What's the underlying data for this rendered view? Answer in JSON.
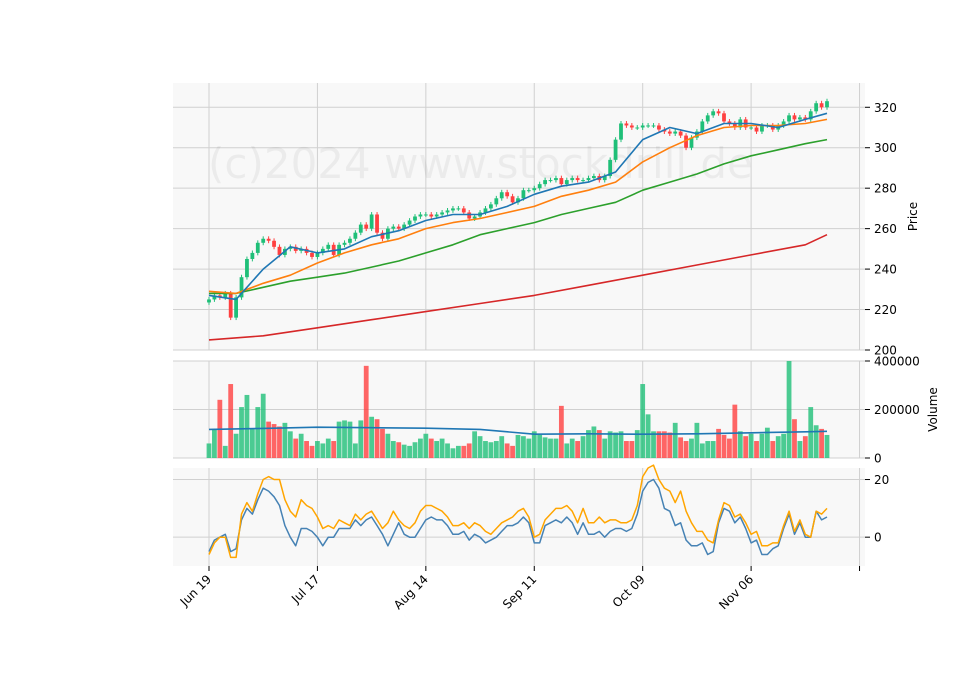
{
  "watermark": "(c)2024 www.stockdrill.de",
  "colors": {
    "up": "#1fbf78",
    "down": "#ff4040",
    "ma_short": "#1f77b4",
    "ma_mid": "#ff7f0e",
    "ma_long": "#2ca02c",
    "ma_200": "#d62728",
    "vol_ma": "#1f77b4",
    "osc_a": "#4682b4",
    "osc_b": "#ffa500",
    "panel_bg": "#f8f8f8",
    "grid": "#d0d0d0"
  },
  "chart_data": {
    "type": "candlestick",
    "x_ticks": [
      "Jun 19",
      "Jul 17",
      "Aug 14",
      "Sep 11",
      "Oct 09",
      "Nov 06"
    ],
    "price_panel": {
      "ylabel": "Price",
      "ylim": [
        200,
        332
      ],
      "y_ticks": [
        "200",
        "220",
        "240",
        "260",
        "280",
        "300",
        "320"
      ],
      "close": [
        225,
        227,
        226,
        228,
        216,
        226,
        236,
        245,
        248,
        253,
        255,
        254,
        251,
        247,
        250,
        251,
        249,
        250,
        248,
        246,
        248,
        250,
        252,
        247,
        252,
        253,
        255,
        258,
        262,
        260,
        267,
        258,
        255,
        260,
        261,
        260,
        262,
        264,
        266,
        267,
        267,
        266,
        267,
        268,
        269,
        270,
        270,
        268,
        265,
        266,
        268,
        270,
        272,
        275,
        278,
        276,
        273,
        275,
        279,
        279,
        280,
        282,
        284,
        284,
        285,
        282,
        284,
        285,
        284,
        284,
        285,
        286,
        284,
        286,
        294,
        304,
        312,
        311,
        310,
        310,
        311,
        311,
        311,
        309,
        308,
        307,
        308,
        306,
        300,
        305,
        308,
        313,
        316,
        318,
        317,
        313,
        312,
        310,
        314,
        310,
        310,
        308,
        311,
        311,
        309,
        311,
        313,
        316,
        314,
        315,
        314,
        318,
        322,
        320,
        323
      ],
      "ma_short": {
        "x_index": [
          0,
          5,
          10,
          15,
          20,
          25,
          30,
          35,
          40,
          45,
          50,
          55,
          60,
          65,
          70,
          75,
          80,
          85,
          90,
          95,
          100,
          105,
          110,
          114
        ],
        "values": [
          227,
          225,
          240,
          251,
          248,
          250,
          256,
          259,
          264,
          267,
          267,
          271,
          277,
          281,
          283,
          288,
          304,
          310,
          307,
          312,
          312,
          310,
          314,
          317
        ]
      },
      "ma_mid": {
        "x_index": [
          0,
          5,
          10,
          15,
          20,
          25,
          30,
          35,
          40,
          45,
          50,
          55,
          60,
          65,
          70,
          75,
          80,
          85,
          90,
          95,
          100,
          105,
          110,
          114
        ],
        "values": [
          229,
          228,
          233,
          237,
          243,
          248,
          252,
          255,
          260,
          263,
          265,
          268,
          271,
          276,
          279,
          283,
          293,
          300,
          306,
          310,
          311,
          311,
          312,
          314
        ]
      },
      "ma_long": {
        "x_index": [
          0,
          5,
          10,
          15,
          20,
          25,
          30,
          35,
          40,
          45,
          50,
          55,
          60,
          65,
          70,
          75,
          80,
          85,
          90,
          95,
          100,
          105,
          110,
          114
        ],
        "values": [
          228,
          228,
          231,
          234,
          236,
          238,
          241,
          244,
          248,
          252,
          257,
          260,
          263,
          267,
          270,
          273,
          279,
          283,
          287,
          292,
          296,
          299,
          302,
          304
        ]
      },
      "ma_200": {
        "x_index": [
          0,
          10,
          20,
          30,
          40,
          50,
          60,
          70,
          80,
          90,
          100,
          110,
          114
        ],
        "values": [
          205,
          207,
          211,
          215,
          219,
          223,
          227,
          232,
          237,
          242,
          247,
          252,
          257
        ]
      }
    },
    "volume_panel": {
      "ylabel": "Volume",
      "ylim": [
        0,
        400000
      ],
      "y_ticks": [
        "0",
        "200000",
        "400000"
      ],
      "values": [
        60000,
        120000,
        240000,
        50000,
        305000,
        100000,
        210000,
        260000,
        120000,
        210000,
        265000,
        150000,
        140000,
        130000,
        145000,
        110000,
        80000,
        100000,
        70000,
        50000,
        70000,
        60000,
        80000,
        70000,
        150000,
        155000,
        150000,
        60000,
        155000,
        380000,
        170000,
        160000,
        120000,
        100000,
        70000,
        65000,
        55000,
        50000,
        65000,
        80000,
        100000,
        80000,
        70000,
        80000,
        60000,
        40000,
        50000,
        50000,
        60000,
        110000,
        90000,
        70000,
        65000,
        70000,
        90000,
        60000,
        50000,
        95000,
        90000,
        80000,
        110000,
        95000,
        85000,
        80000,
        80000,
        215000,
        60000,
        80000,
        70000,
        90000,
        115000,
        130000,
        115000,
        80000,
        110000,
        105000,
        110000,
        70000,
        70000,
        115000,
        305000,
        180000,
        110000,
        110000,
        110000,
        105000,
        145000,
        85000,
        70000,
        80000,
        145000,
        60000,
        70000,
        70000,
        120000,
        95000,
        80000,
        220000,
        110000,
        90000,
        100000,
        70000,
        100000,
        125000,
        70000,
        90000,
        100000,
        400000,
        160000,
        70000,
        90000,
        210000,
        135000,
        120000,
        95000
      ],
      "ma": {
        "x_index": [
          0,
          10,
          20,
          30,
          40,
          50,
          60,
          70,
          80,
          90,
          100,
          110,
          114
        ],
        "values": [
          118000,
          122000,
          127000,
          125000,
          123000,
          118000,
          98000,
          100000,
          98000,
          100000,
          104000,
          108000,
          110000
        ]
      }
    },
    "oscillator_panel": {
      "ylim": [
        -10,
        24
      ],
      "y_ticks": [
        "0",
        "20"
      ],
      "series_a": [
        -5,
        -1,
        0,
        1,
        -5,
        -4,
        6,
        10,
        8,
        13,
        17,
        16,
        14,
        11,
        4,
        0,
        -3,
        3,
        3,
        2,
        0,
        -3,
        0,
        0,
        3,
        3,
        3,
        6,
        4,
        6,
        7,
        4,
        1,
        -3,
        1,
        5,
        1,
        0,
        0,
        3,
        6,
        7,
        6,
        6,
        4,
        1,
        1,
        2,
        -1,
        1,
        0,
        -2,
        -1,
        0,
        2,
        4,
        4,
        5,
        7,
        5,
        -2,
        -2,
        4,
        5,
        6,
        5,
        7,
        5,
        1,
        5,
        1,
        1,
        2,
        0,
        2,
        3,
        3,
        2,
        3,
        8,
        16,
        19,
        20,
        17,
        10,
        9,
        4,
        5,
        -1,
        -3,
        -3,
        -2,
        -6,
        -5,
        5,
        10,
        9,
        5,
        7,
        3,
        -2,
        -1,
        -6,
        -6,
        -4,
        -3,
        3,
        8,
        1,
        5,
        0,
        0,
        9,
        6,
        7
      ],
      "series_b": [
        -6,
        -2,
        0,
        0,
        -7,
        -7,
        8,
        12,
        9,
        15,
        20,
        21,
        20,
        20,
        13,
        9,
        7,
        13,
        11,
        10,
        7,
        3,
        4,
        3,
        6,
        5,
        4,
        8,
        6,
        8,
        9,
        6,
        3,
        5,
        9,
        6,
        4,
        3,
        5,
        9,
        11,
        11,
        10,
        9,
        7,
        4,
        4,
        5,
        3,
        5,
        4,
        2,
        1,
        3,
        5,
        6,
        7,
        9,
        10,
        7,
        0,
        1,
        6,
        8,
        10,
        10,
        11,
        9,
        5,
        10,
        5,
        5,
        7,
        5,
        6,
        6,
        5,
        5,
        6,
        11,
        21,
        24,
        25,
        20,
        17,
        16,
        12,
        16,
        9,
        5,
        2,
        2,
        -1,
        -2,
        6,
        12,
        11,
        7,
        8,
        5,
        1,
        2,
        -3,
        -3,
        -2,
        -2,
        4,
        9,
        2,
        6,
        1,
        0,
        9,
        8,
        10
      ]
    }
  }
}
